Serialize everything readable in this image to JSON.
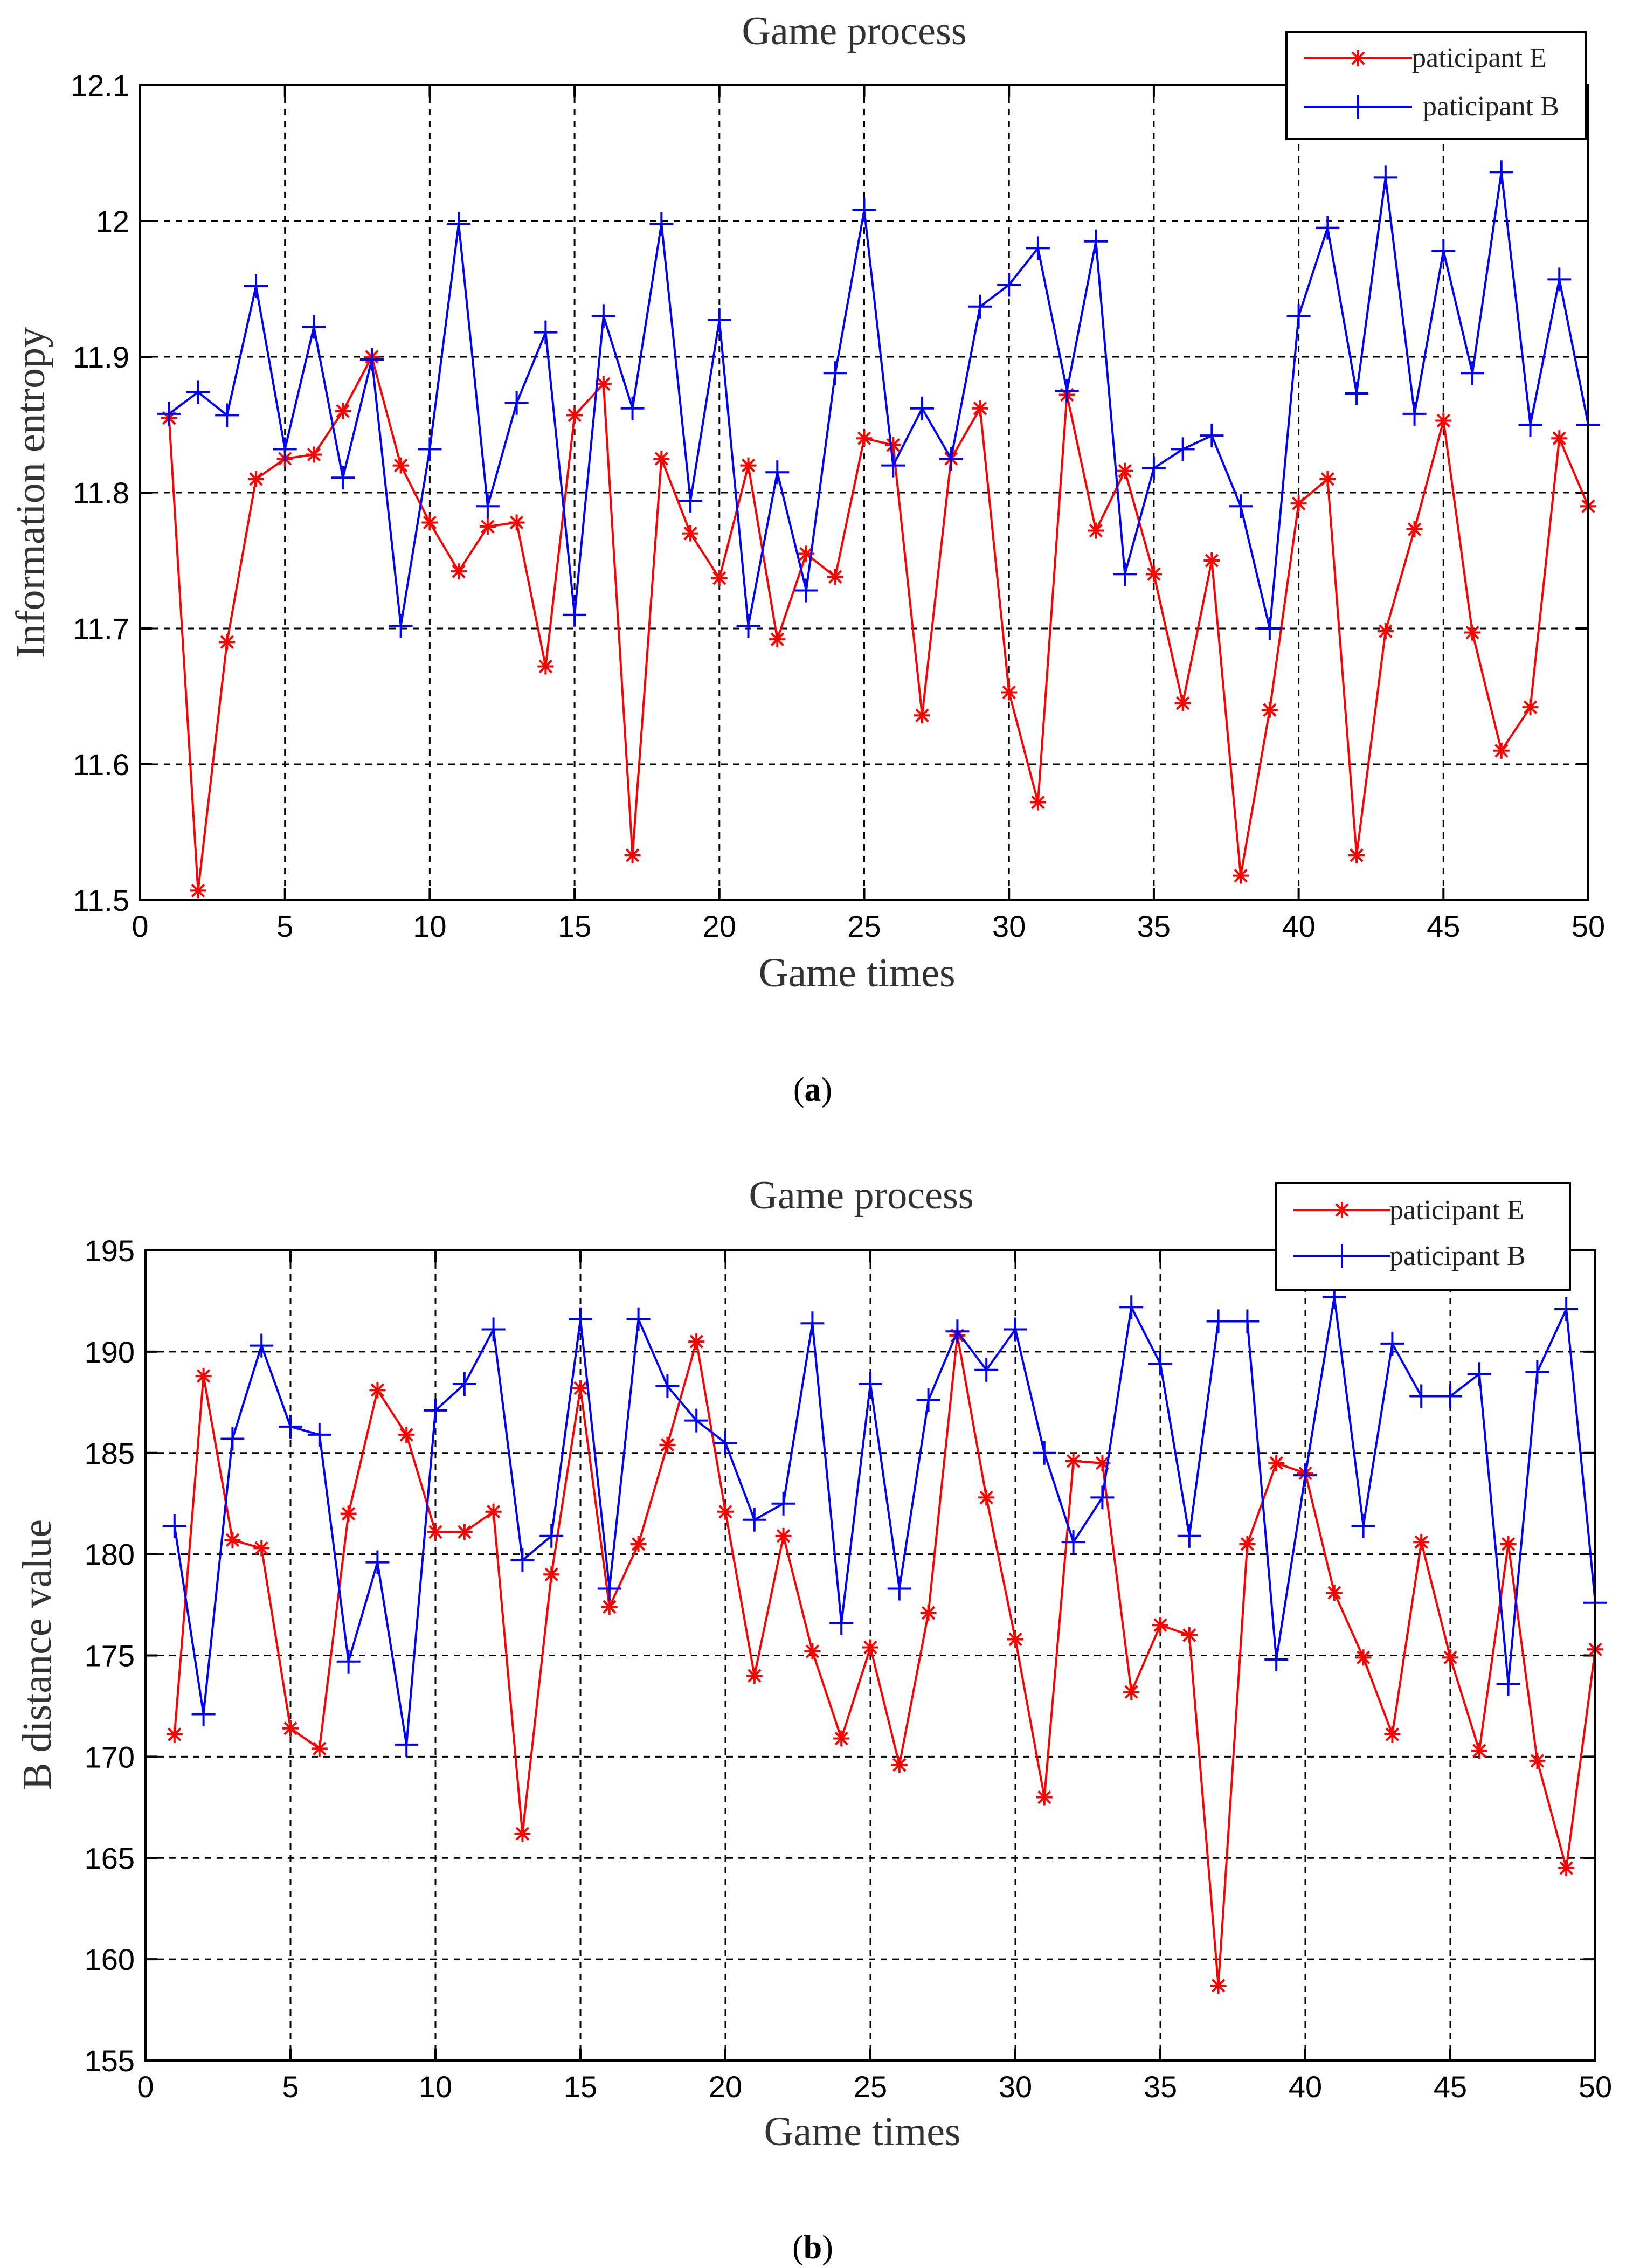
{
  "chart_data": [
    {
      "type": "line",
      "title": "Game process",
      "xlabel": "Game times",
      "ylabel": "Information entropy",
      "caption": "a",
      "grid": true,
      "legend_position": "top-right",
      "xlim": [
        0,
        50
      ],
      "ylim": [
        11.5,
        12.1
      ],
      "xticks": [
        0,
        5,
        10,
        15,
        20,
        25,
        30,
        35,
        40,
        45,
        50
      ],
      "yticks": [
        11.5,
        11.6,
        11.7,
        11.8,
        11.9,
        12,
        12.1
      ],
      "x": [
        1,
        2,
        3,
        4,
        5,
        6,
        7,
        8,
        9,
        10,
        11,
        12,
        13,
        14,
        15,
        16,
        17,
        18,
        19,
        20,
        21,
        22,
        23,
        24,
        25,
        26,
        27,
        28,
        29,
        30,
        31,
        32,
        33,
        34,
        35,
        36,
        37,
        38,
        39,
        40,
        41,
        42,
        43,
        44,
        45,
        46,
        47,
        48,
        49,
        50
      ],
      "series": [
        {
          "name": "paticipant E",
          "color": "#ff0000",
          "marker": "asterisk",
          "values": [
            11.855,
            11.507,
            11.69,
            11.81,
            11.825,
            11.828,
            11.86,
            11.9,
            11.82,
            11.778,
            11.742,
            11.775,
            11.778,
            11.672,
            11.857,
            11.88,
            11.533,
            11.825,
            11.77,
            11.737,
            11.82,
            11.692,
            11.755,
            11.738,
            11.84,
            11.835,
            11.636,
            11.825,
            11.862,
            11.653,
            11.572,
            11.872,
            11.772,
            11.816,
            11.74,
            11.645,
            11.75,
            11.518,
            11.64,
            11.792,
            11.81,
            11.533,
            11.698,
            11.773,
            11.853,
            11.697,
            11.61,
            11.642,
            11.84,
            11.79
          ]
        },
        {
          "name": "paticipant B",
          "color": "#0000ff",
          "marker": "plus",
          "values": [
            11.858,
            11.874,
            11.857,
            11.952,
            11.832,
            11.922,
            11.811,
            11.898,
            11.702,
            11.832,
            11.998,
            11.79,
            11.866,
            11.918,
            11.71,
            11.93,
            11.862,
            11.998,
            11.794,
            11.927,
            11.702,
            11.815,
            11.728,
            11.888,
            12.008,
            11.82,
            11.862,
            11.825,
            11.937,
            11.953,
            11.98,
            11.875,
            11.985,
            11.74,
            11.818,
            11.832,
            11.842,
            11.79,
            11.7,
            11.93,
            11.995,
            11.873,
            12.032,
            11.858,
            11.978,
            11.888,
            12.036,
            11.85,
            11.957,
            11.85
          ]
        }
      ]
    },
    {
      "type": "line",
      "title": "Game process",
      "xlabel": "Game times",
      "ylabel": "B distance value",
      "caption": "b",
      "grid": true,
      "legend_position": "top-right",
      "xlim": [
        0,
        50
      ],
      "ylim": [
        155,
        195
      ],
      "xticks": [
        0,
        5,
        10,
        15,
        20,
        25,
        30,
        35,
        40,
        45,
        50
      ],
      "yticks": [
        155,
        160,
        165,
        170,
        175,
        180,
        185,
        190,
        195
      ],
      "x": [
        1,
        2,
        3,
        4,
        5,
        6,
        7,
        8,
        9,
        10,
        11,
        12,
        13,
        14,
        15,
        16,
        17,
        18,
        19,
        20,
        21,
        22,
        23,
        24,
        25,
        26,
        27,
        28,
        29,
        30,
        31,
        32,
        33,
        34,
        35,
        36,
        37,
        38,
        39,
        40,
        41,
        42,
        43,
        44,
        45,
        46,
        47,
        48,
        49,
        50
      ],
      "series": [
        {
          "name": "paticipant E",
          "color": "#ff0000",
          "marker": "asterisk",
          "values": [
            171.1,
            188.8,
            180.7,
            180.3,
            171.4,
            170.4,
            182,
            188.1,
            185.9,
            181.1,
            181.1,
            182.1,
            166.2,
            179,
            188.2,
            177.4,
            180.5,
            185.4,
            190.5,
            182.1,
            174,
            180.9,
            175.2,
            170.9,
            175.4,
            169.6,
            177.1,
            190.8,
            182.8,
            175.8,
            168,
            184.6,
            184.5,
            173.2,
            176.5,
            176,
            158.7,
            180.5,
            184.5,
            184,
            178.1,
            174.9,
            171.1,
            180.6,
            174.9,
            170.3,
            180.5,
            169.8,
            164.5,
            175.3
          ]
        },
        {
          "name": "paticipant B",
          "color": "#0000ff",
          "marker": "plus",
          "values": [
            181.4,
            172.1,
            185.7,
            190.3,
            186.3,
            185.9,
            174.7,
            179.6,
            170.6,
            187.1,
            188.4,
            191.1,
            179.7,
            180.9,
            191.6,
            178.3,
            191.6,
            188.3,
            186.6,
            185.5,
            181.7,
            182.5,
            191.4,
            176.6,
            188.4,
            178.3,
            187.6,
            191,
            189.1,
            191.1,
            185,
            180.6,
            182.8,
            192.2,
            189.4,
            180.9,
            191.5,
            191.5,
            174.8,
            183.9,
            192.7,
            181.4,
            190.4,
            187.8,
            187.8,
            188.9,
            173.6,
            189,
            192.1,
            177.6
          ]
        }
      ]
    }
  ]
}
